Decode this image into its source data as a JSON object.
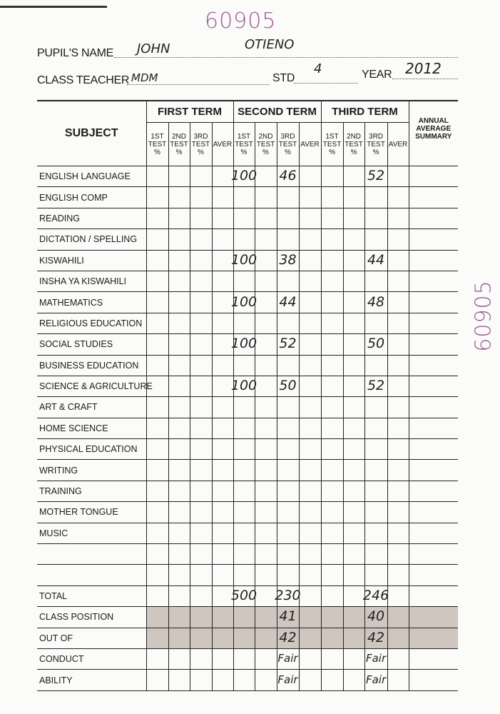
{
  "document_codes": {
    "top": "60905",
    "side": "60905"
  },
  "header": {
    "pupil_name_label": "PUPIL'S NAME",
    "pupil_first_name": "JOHN",
    "pupil_last_name": "OTIENO",
    "class_teacher_label": "CLASS TEACHER",
    "class_teacher_value": "MDM",
    "std_label": "STD",
    "std_value": "4",
    "year_label": "YEAR",
    "year_value": "2012"
  },
  "table": {
    "subject_header": "SUBJECT",
    "terms": [
      "FIRST TERM",
      "SECOND TERM",
      "THIRD TERM"
    ],
    "annual_header": "ANNUAL AVERAGE SUMMARY",
    "sub_columns": [
      "1ST TEST %",
      "2ND TEST %",
      "3RD TEST %",
      "AVER"
    ],
    "column_keys": [
      "t1_test1",
      "t1_test2",
      "t1_test3",
      "t1_aver",
      "t2_test1",
      "t2_test2",
      "t2_test3",
      "t2_aver",
      "t3_test1",
      "t3_test2",
      "t3_test3",
      "t3_aver",
      "annual"
    ],
    "rows": [
      {
        "subject": "ENGLISH LANGUAGE",
        "marks": {
          "t2_test1": "100",
          "t2_test3": "46",
          "t3_test3": "52"
        }
      },
      {
        "subject": "ENGLISH COMP",
        "marks": {}
      },
      {
        "subject": "READING",
        "marks": {}
      },
      {
        "subject": "DICTATION / SPELLING",
        "marks": {}
      },
      {
        "subject": "KISWAHILI",
        "marks": {
          "t2_test1": "100",
          "t2_test3": "38",
          "t3_test3": "44"
        }
      },
      {
        "subject": "INSHA YA KISWAHILI",
        "marks": {}
      },
      {
        "subject": "MATHEMATICS",
        "marks": {
          "t2_test1": "100",
          "t2_test3": "44",
          "t3_test3": "48"
        }
      },
      {
        "subject": "RELIGIOUS EDUCATION",
        "marks": {}
      },
      {
        "subject": "SOCIAL STUDIES",
        "marks": {
          "t2_test1": "100",
          "t2_test3": "52",
          "t3_test3": "50"
        }
      },
      {
        "subject": "BUSINESS EDUCATION",
        "marks": {}
      },
      {
        "subject": "SCIENCE & AGRICULTURE",
        "marks": {
          "t2_test1": "100",
          "t2_test3": "50",
          "t3_test3": "52"
        }
      },
      {
        "subject": "ART & CRAFT",
        "marks": {}
      },
      {
        "subject": "HOME SCIENCE",
        "marks": {}
      },
      {
        "subject": "PHYSICAL EDUCATION",
        "marks": {}
      },
      {
        "subject": "WRITING",
        "marks": {}
      },
      {
        "subject": "TRAINING",
        "marks": {}
      },
      {
        "subject": "MOTHER TONGUE",
        "marks": {}
      },
      {
        "subject": "MUSIC",
        "marks": {}
      },
      {
        "subject": "",
        "marks": {}
      },
      {
        "subject": "",
        "marks": {}
      },
      {
        "subject": "TOTAL",
        "marks": {
          "t2_test1": "500",
          "t2_test3": "230",
          "t3_test3": "246"
        }
      },
      {
        "subject": "CLASS POSITION",
        "shaded": true,
        "marks": {
          "t2_test3": "41",
          "t3_test3": "40"
        }
      },
      {
        "subject": "OUT OF",
        "shaded": true,
        "marks": {
          "t2_test3": "42",
          "t3_test3": "42"
        }
      },
      {
        "subject": "CONDUCT",
        "marks": {
          "t2_test3": "Fair",
          "t3_test3": "Fair"
        }
      },
      {
        "subject": "ABILITY",
        "marks": {
          "t2_test3": "Fair",
          "t3_test3": "Fair"
        }
      }
    ]
  },
  "colors": {
    "ink": "#222222",
    "stamp_purple": "#9a5a9a",
    "shade": "#cfc6c0"
  }
}
